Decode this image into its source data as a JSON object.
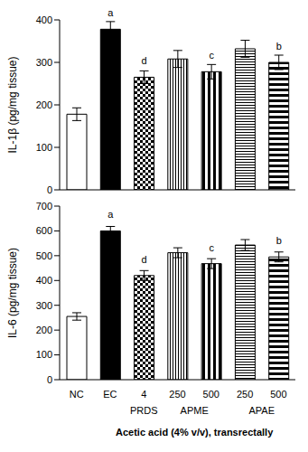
{
  "chart_data": [
    {
      "type": "bar",
      "ylabel": "IL-1β (pg/mg tissue)",
      "categories": [
        "NC",
        "EC",
        "4",
        "250",
        "500",
        "250",
        "500"
      ],
      "values": [
        178,
        378,
        265,
        308,
        278,
        332,
        300
      ],
      "error": [
        15,
        18,
        15,
        20,
        17,
        20,
        17
      ],
      "significance": [
        null,
        "a",
        "d",
        null,
        "c",
        null,
        "b"
      ],
      "color": "#000000",
      "ylim": [
        0,
        400
      ],
      "yticks": [
        0,
        100,
        200,
        300,
        400
      ],
      "tick_labels": "y"
    },
    {
      "type": "bar",
      "ylabel": "IL-6 (pg/mg tissue)",
      "categories": [
        "NC",
        "EC",
        "4",
        "250",
        "500",
        "250",
        "500"
      ],
      "values": [
        255,
        600,
        420,
        512,
        468,
        543,
        495
      ],
      "error": [
        15,
        18,
        20,
        20,
        20,
        22,
        20
      ],
      "significance": [
        null,
        "a",
        "d",
        null,
        "c",
        null,
        "b"
      ],
      "color": "#000000",
      "ylim": [
        0,
        700
      ],
      "yticks": [
        0,
        100,
        200,
        300,
        400,
        500,
        600,
        700
      ],
      "x_groups": [
        {
          "label": "PRDS",
          "start": 2,
          "end": 2
        },
        {
          "label": "APME",
          "start": 3,
          "end": 4
        },
        {
          "label": "APAE",
          "start": 5,
          "end": 6
        }
      ],
      "xlabel": "Acetic acid (4% v/v), transrectally"
    }
  ]
}
